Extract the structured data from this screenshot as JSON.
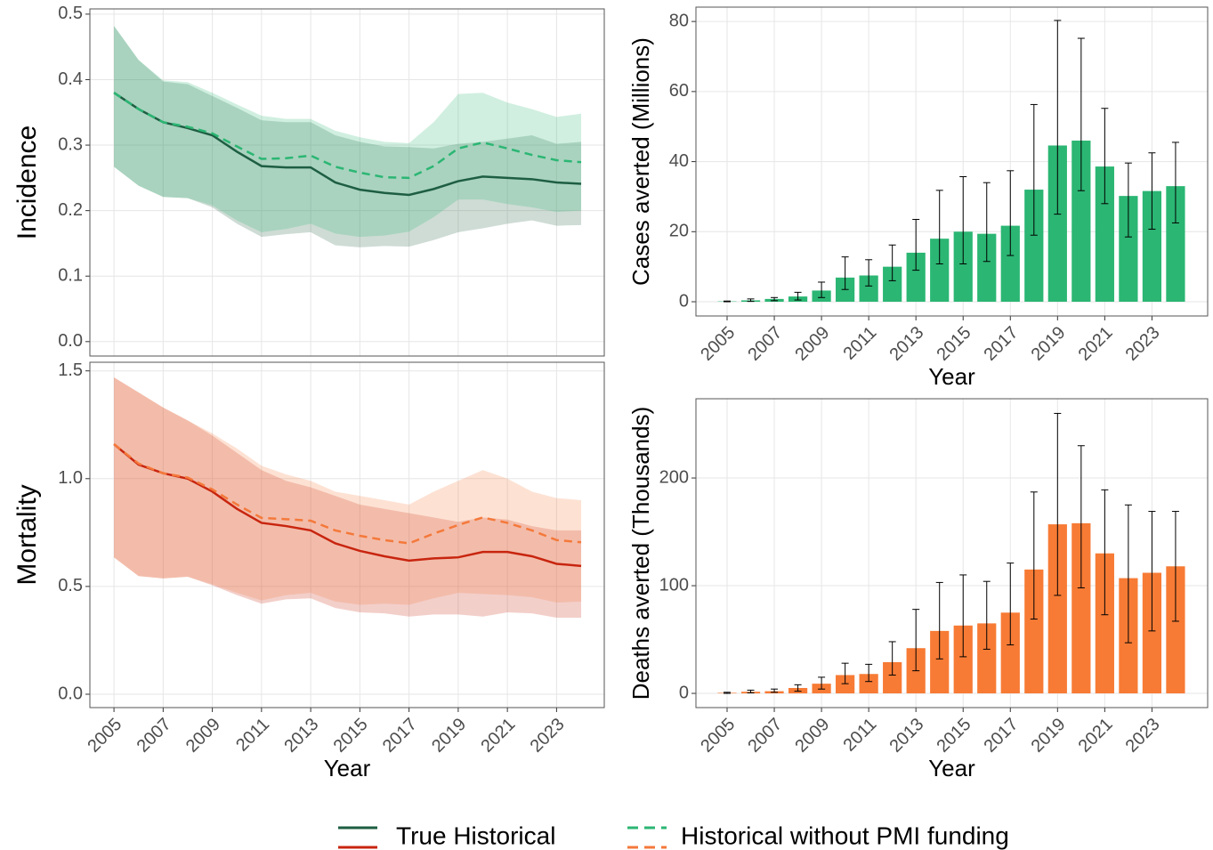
{
  "chart_data": [
    {
      "type": "line",
      "ylabel": "Incidence",
      "x": [
        2005,
        2006,
        2007,
        2008,
        2009,
        2010,
        2011,
        2012,
        2013,
        2014,
        2015,
        2016,
        2017,
        2018,
        2019,
        2020,
        2021,
        2022,
        2023,
        2024
      ],
      "xlim": [
        2004.02,
        2024.94
      ],
      "xticks": [
        2005,
        2007,
        2009,
        2011,
        2013,
        2015,
        2017,
        2019,
        2021,
        2023
      ],
      "ylim": [
        -0.022,
        0.508
      ],
      "yticks": [
        {
          "value": 0,
          "label": "0.0"
        },
        0.1,
        0.2,
        0.3,
        0.4,
        0.5
      ],
      "grid": true,
      "series": [
        {
          "name": "True Historical",
          "color": "#1e5e42",
          "dash": false,
          "values": [
            0.38,
            0.355,
            0.335,
            0.326,
            0.315,
            0.29,
            0.268,
            0.266,
            0.266,
            0.243,
            0.232,
            0.227,
            0.224,
            0.233,
            0.245,
            0.252,
            0.25,
            0.248,
            0.243,
            0.241
          ],
          "lower": [
            0.267,
            0.238,
            0.221,
            0.219,
            0.205,
            0.18,
            0.16,
            0.164,
            0.167,
            0.147,
            0.144,
            0.146,
            0.145,
            0.155,
            0.167,
            0.173,
            0.18,
            0.185,
            0.177,
            0.178
          ],
          "upper": [
            0.482,
            0.43,
            0.397,
            0.393,
            0.375,
            0.357,
            0.338,
            0.335,
            0.335,
            0.315,
            0.305,
            0.298,
            0.297,
            0.295,
            0.302,
            0.305,
            0.31,
            0.315,
            0.302,
            0.305
          ]
        },
        {
          "name": "Historical without PMI funding",
          "color": "#2bb673",
          "dash": true,
          "values": [
            0.38,
            0.355,
            0.335,
            0.328,
            0.318,
            0.298,
            0.279,
            0.28,
            0.284,
            0.267,
            0.258,
            0.251,
            0.25,
            0.268,
            0.295,
            0.304,
            0.295,
            0.285,
            0.277,
            0.274
          ],
          "lower": [
            0.267,
            0.238,
            0.221,
            0.219,
            0.208,
            0.185,
            0.167,
            0.172,
            0.18,
            0.165,
            0.16,
            0.162,
            0.168,
            0.19,
            0.217,
            0.217,
            0.21,
            0.205,
            0.198,
            0.2
          ],
          "upper": [
            0.482,
            0.43,
            0.399,
            0.396,
            0.38,
            0.362,
            0.345,
            0.34,
            0.34,
            0.322,
            0.312,
            0.305,
            0.303,
            0.335,
            0.378,
            0.38,
            0.365,
            0.355,
            0.343,
            0.348
          ]
        }
      ]
    },
    {
      "type": "line",
      "ylabel": "Mortality",
      "xlabel": "Year",
      "x": [
        2005,
        2006,
        2007,
        2008,
        2009,
        2010,
        2011,
        2012,
        2013,
        2014,
        2015,
        2016,
        2017,
        2018,
        2019,
        2020,
        2021,
        2022,
        2023,
        2024
      ],
      "xlim": [
        2004.02,
        2024.94
      ],
      "xticks": [
        2005,
        2007,
        2009,
        2011,
        2013,
        2015,
        2017,
        2019,
        2021,
        2023
      ],
      "ylim": [
        -0.062,
        1.54
      ],
      "yticks": [
        {
          "value": 0,
          "label": "0.0"
        },
        0.5,
        {
          "value": 1,
          "label": "1.0"
        },
        1.5
      ],
      "grid": true,
      "series": [
        {
          "color": "#c8250f",
          "dash": false,
          "values": [
            1.16,
            1.065,
            1.025,
            1.0,
            0.94,
            0.86,
            0.795,
            0.78,
            0.76,
            0.7,
            0.665,
            0.64,
            0.62,
            0.63,
            0.635,
            0.66,
            0.66,
            0.64,
            0.605,
            0.595
          ],
          "lower": [
            0.635,
            0.548,
            0.537,
            0.545,
            0.505,
            0.46,
            0.42,
            0.44,
            0.445,
            0.4,
            0.38,
            0.375,
            0.36,
            0.37,
            0.37,
            0.36,
            0.38,
            0.375,
            0.355,
            0.355
          ],
          "upper": [
            1.47,
            1.4,
            1.33,
            1.27,
            1.2,
            1.12,
            1.04,
            0.99,
            0.96,
            0.92,
            0.88,
            0.86,
            0.84,
            0.82,
            0.8,
            0.82,
            0.81,
            0.78,
            0.76,
            0.76
          ]
        },
        {
          "color": "#f4793b",
          "dash": true,
          "values": [
            1.16,
            1.07,
            1.025,
            1.005,
            0.95,
            0.88,
            0.818,
            0.812,
            0.805,
            0.76,
            0.735,
            0.715,
            0.7,
            0.745,
            0.785,
            0.82,
            0.795,
            0.76,
            0.715,
            0.705
          ],
          "lower": [
            0.635,
            0.548,
            0.537,
            0.545,
            0.51,
            0.47,
            0.435,
            0.46,
            0.47,
            0.43,
            0.415,
            0.42,
            0.415,
            0.445,
            0.47,
            0.465,
            0.46,
            0.45,
            0.425,
            0.43
          ],
          "upper": [
            1.47,
            1.4,
            1.33,
            1.27,
            1.21,
            1.14,
            1.06,
            1.02,
            0.99,
            0.94,
            0.92,
            0.9,
            0.88,
            0.94,
            0.99,
            1.04,
            1.0,
            0.94,
            0.91,
            0.9
          ]
        }
      ]
    },
    {
      "type": "bar",
      "ylabel": "Cases averted (Millions)",
      "xlabel": "Year",
      "x": [
        2005,
        2006,
        2007,
        2008,
        2009,
        2010,
        2011,
        2012,
        2013,
        2014,
        2015,
        2016,
        2017,
        2018,
        2019,
        2020,
        2021,
        2022,
        2023,
        2024
      ],
      "xlim": [
        2003.68,
        2025.36
      ],
      "xticks": [
        2005,
        2007,
        2009,
        2011,
        2013,
        2015,
        2017,
        2019,
        2021,
        2023
      ],
      "ylim": [
        -4.06,
        84.1
      ],
      "yticks": [
        0,
        20,
        40,
        60,
        80
      ],
      "grid": true,
      "series": [
        {
          "color": "#2bb673",
          "values": [
            0.1,
            0.4,
            0.8,
            1.5,
            3.2,
            6.9,
            7.5,
            10,
            14,
            18,
            20,
            19.4,
            21.7,
            32,
            44.6,
            46,
            38.6,
            30.2,
            31.6,
            33
          ],
          "lower": [
            0,
            0.1,
            0.3,
            0.5,
            1.2,
            3.5,
            4.5,
            6,
            9,
            10.8,
            10.8,
            11.5,
            13.2,
            19,
            25,
            31.7,
            28,
            18.5,
            20.7,
            22.5
          ],
          "upper": [
            0.2,
            0.8,
            1.2,
            2.7,
            5.6,
            12.8,
            12,
            16.2,
            23.5,
            31.8,
            35.7,
            34,
            37.4,
            56.3,
            80.3,
            75.2,
            55.2,
            39.6,
            42.5,
            45.5
          ]
        }
      ]
    },
    {
      "type": "bar",
      "ylabel": "Deaths averted (Thousands)",
      "xlabel": "Year",
      "x": [
        2005,
        2006,
        2007,
        2008,
        2009,
        2010,
        2011,
        2012,
        2013,
        2014,
        2015,
        2016,
        2017,
        2018,
        2019,
        2020,
        2021,
        2022,
        2023,
        2024
      ],
      "xlim": [
        2003.68,
        2025.36
      ],
      "xticks": [
        2005,
        2007,
        2009,
        2011,
        2013,
        2015,
        2017,
        2019,
        2021,
        2023
      ],
      "ylim": [
        -13.2,
        273.6
      ],
      "yticks": [
        0,
        100,
        200
      ],
      "grid": true,
      "series": [
        {
          "color": "#f77b35",
          "values": [
            0.5,
            1.5,
            2,
            5,
            9,
            17,
            18,
            29,
            42,
            58,
            63,
            65,
            75,
            115,
            157,
            158,
            130,
            107,
            112,
            118
          ],
          "lower": [
            0,
            0.5,
            1,
            2,
            4,
            9,
            11,
            17,
            21,
            32,
            34,
            41,
            45,
            69,
            91,
            98,
            73,
            47,
            58,
            67
          ],
          "upper": [
            1,
            3,
            4,
            8,
            15,
            28,
            27,
            48,
            78,
            103,
            110,
            104,
            121,
            187,
            260,
            230,
            189,
            175,
            169,
            169
          ]
        }
      ]
    }
  ]
}
